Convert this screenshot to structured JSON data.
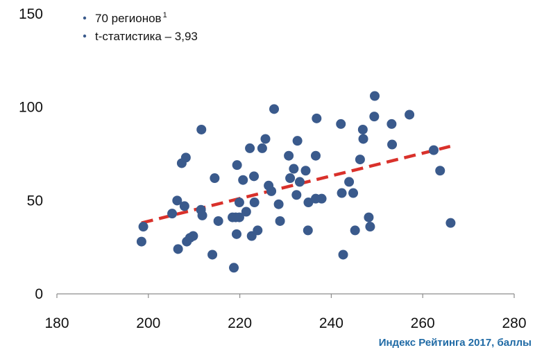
{
  "chart_data": {
    "type": "scatter",
    "title": "",
    "xlabel": "Индекс Рейтинга 2017, баллы",
    "ylabel": "",
    "xlim": [
      180,
      280
    ],
    "ylim": [
      0,
      150
    ],
    "x_ticks": [
      180,
      200,
      220,
      240,
      260,
      280
    ],
    "y_ticks": [
      0,
      50,
      100,
      150
    ],
    "grid": false,
    "legend_position": "top-left",
    "legend": [
      {
        "text": "70 регионов",
        "sup": "1"
      },
      {
        "text": "t-статистика – 3,93",
        "sup": ""
      }
    ],
    "series": [
      {
        "marker_color": "#3a5a8c",
        "points": [
          [
            198.5,
            28
          ],
          [
            198.9,
            36
          ],
          [
            205.2,
            43
          ],
          [
            206.3,
            50
          ],
          [
            206.5,
            24
          ],
          [
            207.3,
            70
          ],
          [
            207.9,
            47
          ],
          [
            208.2,
            73
          ],
          [
            208.4,
            28
          ],
          [
            209.1,
            30
          ],
          [
            209.8,
            31
          ],
          [
            211.5,
            45
          ],
          [
            211.6,
            88
          ],
          [
            211.8,
            42
          ],
          [
            214.0,
            21
          ],
          [
            214.5,
            62
          ],
          [
            215.3,
            39
          ],
          [
            218.4,
            41
          ],
          [
            218.7,
            14
          ],
          [
            219.1,
            41
          ],
          [
            219.3,
            32
          ],
          [
            219.4,
            69
          ],
          [
            219.9,
            49
          ],
          [
            219.9,
            41
          ],
          [
            220.7,
            61
          ],
          [
            221.4,
            44
          ],
          [
            222.2,
            78
          ],
          [
            222.6,
            31
          ],
          [
            223.1,
            63
          ],
          [
            223.2,
            49
          ],
          [
            223.9,
            34
          ],
          [
            224.9,
            78
          ],
          [
            225.6,
            83
          ],
          [
            226.3,
            58
          ],
          [
            226.9,
            55
          ],
          [
            227.5,
            99
          ],
          [
            228.5,
            48
          ],
          [
            228.8,
            39
          ],
          [
            230.7,
            74
          ],
          [
            231.0,
            62
          ],
          [
            231.8,
            67
          ],
          [
            232.4,
            53
          ],
          [
            232.6,
            82
          ],
          [
            233.1,
            60
          ],
          [
            234.4,
            66
          ],
          [
            234.9,
            34
          ],
          [
            235.0,
            49
          ],
          [
            236.6,
            51
          ],
          [
            236.6,
            74
          ],
          [
            236.8,
            94
          ],
          [
            237.9,
            51
          ],
          [
            242.1,
            91
          ],
          [
            242.3,
            54
          ],
          [
            242.6,
            21
          ],
          [
            243.9,
            60
          ],
          [
            244.8,
            54
          ],
          [
            245.2,
            34
          ],
          [
            246.3,
            72
          ],
          [
            246.9,
            88
          ],
          [
            247.0,
            83
          ],
          [
            248.2,
            41
          ],
          [
            248.5,
            36
          ],
          [
            249.4,
            95
          ],
          [
            249.5,
            106
          ],
          [
            253.2,
            91
          ],
          [
            253.3,
            80
          ],
          [
            257.1,
            96
          ],
          [
            262.4,
            77
          ],
          [
            263.8,
            66
          ],
          [
            266.1,
            38
          ]
        ]
      }
    ],
    "trendline": {
      "color": "#d9312b",
      "style": "dashed",
      "x": [
        198.5,
        266.0
      ],
      "y": [
        38,
        79
      ]
    }
  }
}
